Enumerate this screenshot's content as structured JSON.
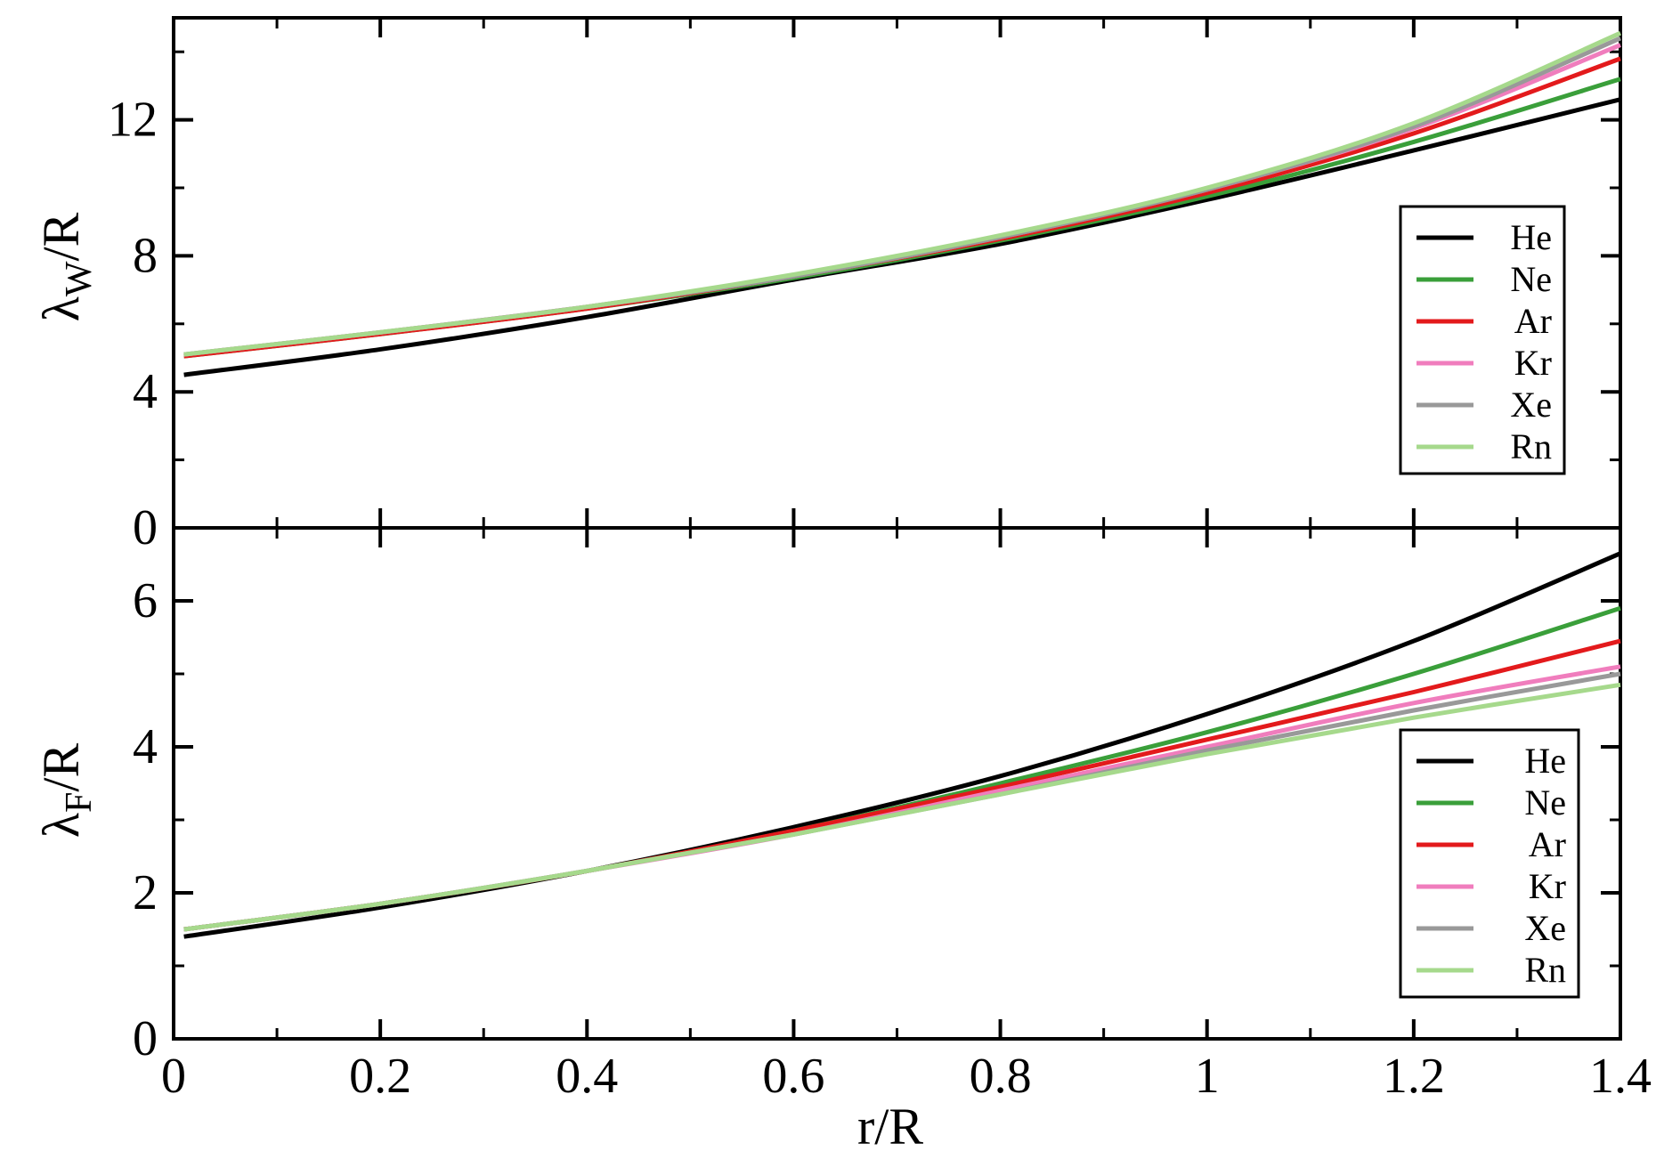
{
  "figure": {
    "x_axis_title": "r/R",
    "top_y_main": "λ",
    "top_y_sub": "W",
    "top_y_suffix": "/R",
    "bottom_y_main": "λ",
    "bottom_y_sub": "F",
    "bottom_y_suffix": "/R"
  },
  "chart_data": [
    {
      "type": "line",
      "ylabel": "λW/R",
      "xlabel": "",
      "xlim": [
        0,
        1.4
      ],
      "ylim": [
        0,
        15
      ],
      "x_ticks": [
        "0",
        "0.2",
        "0.4",
        "0.6",
        "0.8",
        "1",
        "1.2",
        "1.4"
      ],
      "y_ticks": [
        "0",
        "4",
        "8",
        "12"
      ],
      "legend_position": "right",
      "x": [
        0.01,
        0.2,
        0.4,
        0.6,
        0.8,
        1.0,
        1.2,
        1.4
      ],
      "series": [
        {
          "name": "He",
          "color": "#000000",
          "values": [
            4.5,
            5.25,
            6.2,
            7.3,
            8.35,
            9.65,
            11.1,
            12.6
          ]
        },
        {
          "name": "Ne",
          "color": "#3a9f3a",
          "values": [
            5.05,
            5.7,
            6.45,
            7.35,
            8.45,
            9.75,
            11.35,
            13.2
          ]
        },
        {
          "name": "Ar",
          "color": "#e31a1c",
          "values": [
            5.05,
            5.7,
            6.45,
            7.4,
            8.5,
            9.85,
            11.6,
            13.8
          ]
        },
        {
          "name": "Kr",
          "color": "#f07dbd",
          "values": [
            5.1,
            5.75,
            6.5,
            7.4,
            8.55,
            9.95,
            11.75,
            14.2
          ]
        },
        {
          "name": "Xe",
          "color": "#999999",
          "values": [
            5.1,
            5.75,
            6.5,
            7.4,
            8.55,
            9.95,
            11.8,
            14.4
          ]
        },
        {
          "name": "Rn",
          "color": "#a6d98c",
          "values": [
            5.1,
            5.75,
            6.5,
            7.45,
            8.6,
            10.0,
            11.9,
            14.55
          ]
        }
      ]
    },
    {
      "type": "line",
      "ylabel": "λF/R",
      "xlabel": "r/R",
      "xlim": [
        0,
        1.4
      ],
      "ylim": [
        0,
        7
      ],
      "x_ticks": [
        "0",
        "0.2",
        "0.4",
        "0.6",
        "0.8",
        "1",
        "1.2",
        "1.4"
      ],
      "y_ticks": [
        "0",
        "2",
        "4",
        "6"
      ],
      "legend_position": "bottom-right",
      "x": [
        0.01,
        0.2,
        0.4,
        0.6,
        0.8,
        1.0,
        1.2,
        1.4
      ],
      "series": [
        {
          "name": "He",
          "color": "#000000",
          "values": [
            1.4,
            1.8,
            2.3,
            2.9,
            3.6,
            4.45,
            5.45,
            6.65
          ]
        },
        {
          "name": "Ne",
          "color": "#3a9f3a",
          "values": [
            1.5,
            1.85,
            2.3,
            2.85,
            3.5,
            4.2,
            5.0,
            5.9
          ]
        },
        {
          "name": "Ar",
          "color": "#e31a1c",
          "values": [
            1.5,
            1.85,
            2.3,
            2.85,
            3.45,
            4.1,
            4.75,
            5.45
          ]
        },
        {
          "name": "Kr",
          "color": "#f07dbd",
          "values": [
            1.5,
            1.85,
            2.3,
            2.8,
            3.4,
            4.0,
            4.6,
            5.1
          ]
        },
        {
          "name": "Xe",
          "color": "#999999",
          "values": [
            1.5,
            1.85,
            2.3,
            2.8,
            3.35,
            3.95,
            4.5,
            5.0
          ]
        },
        {
          "name": "Rn",
          "color": "#a6d98c",
          "values": [
            1.5,
            1.85,
            2.3,
            2.8,
            3.35,
            3.9,
            4.4,
            4.85
          ]
        }
      ]
    }
  ]
}
